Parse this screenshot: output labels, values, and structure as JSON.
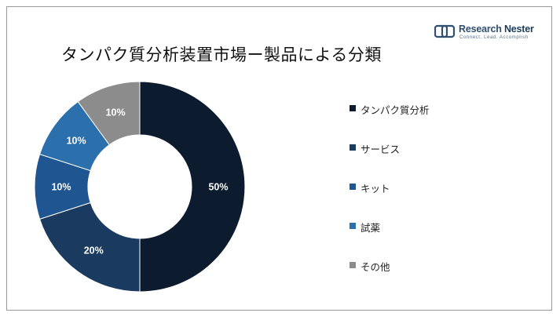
{
  "brand": {
    "name_part1": "Research",
    "name_part2": "Nester",
    "tagline": "Connect. Lead. Accomplish",
    "icon": "research-nester-logo-icon"
  },
  "chart_data": {
    "type": "pie",
    "title": "タンパク質分析装置市場ー製品による分類",
    "donut": true,
    "legend_position": "right",
    "categories": [
      "タンパク質分析",
      "サービス",
      "キット",
      "試薬",
      "その他"
    ],
    "values": [
      50,
      20,
      10,
      10,
      10
    ],
    "data_labels": [
      "50%",
      "20%",
      "10%",
      "10%",
      "10%"
    ],
    "colors": [
      "#0c1b2e",
      "#1b3a5f",
      "#1f5590",
      "#2c6fad",
      "#8c8c8c"
    ]
  }
}
